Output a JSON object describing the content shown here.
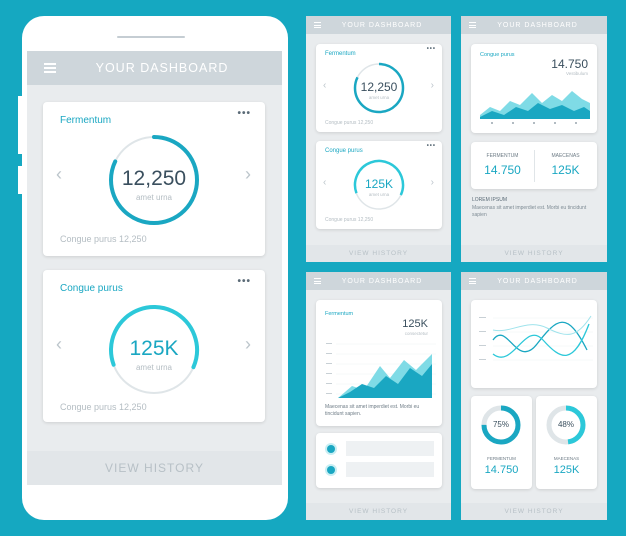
{
  "header": {
    "title": "YOUR DASHBOARD"
  },
  "phone": {
    "card1": {
      "label": "Fermentum",
      "value": "12,250",
      "sub": "amet urna",
      "foot": "Congue purus 12,250",
      "progress": 0.82
    },
    "card2": {
      "label": "Congue purus",
      "value": "125K",
      "sub": "amet urna",
      "foot": "Congue purus 12,250",
      "progress": 0.62
    },
    "history": "VIEW HISTORY",
    "more": "•••"
  },
  "s1": {
    "card1": {
      "label": "Fermentum",
      "value": "12,250",
      "sub": "amet urna",
      "foot": "Congue purus 12,250"
    },
    "card2": {
      "label": "Congue purus",
      "value": "125K",
      "sub": "amet urna",
      "foot": "Congue purus 12,250"
    },
    "history": "VIEW HISTORY"
  },
  "s2": {
    "chart": {
      "label": "Congue purus",
      "value": "14.750",
      "sub": "Vestibulum"
    },
    "stat1": {
      "label": "FERMENTUM",
      "value": "14.750"
    },
    "stat2": {
      "label": "MAECENAS",
      "value": "125K"
    },
    "lorem": {
      "title": "LOREM IPSUM",
      "text": "Maecenas sit amet imperdiet est. Morbi eu tincidunt sapien"
    },
    "history": "VIEW HISTORY"
  },
  "s3": {
    "chart": {
      "label": "Fermentum",
      "value": "125K",
      "sub": "consectetur",
      "text": "Maecenas sit amet imperdiet est. Morbi eu tincidunt sapien."
    },
    "history": "VIEW HISTORY"
  },
  "s4": {
    "d1": {
      "pct": "75%",
      "label": "FERMENTUM",
      "value": "14.750",
      "fraction": 0.75
    },
    "d2": {
      "pct": "48%",
      "label": "MAECENAS",
      "value": "125K",
      "fraction": 0.48
    },
    "history": "VIEW HISTORY"
  },
  "colors": {
    "accent": "#1aa7c2",
    "background": "#15a8c1"
  }
}
